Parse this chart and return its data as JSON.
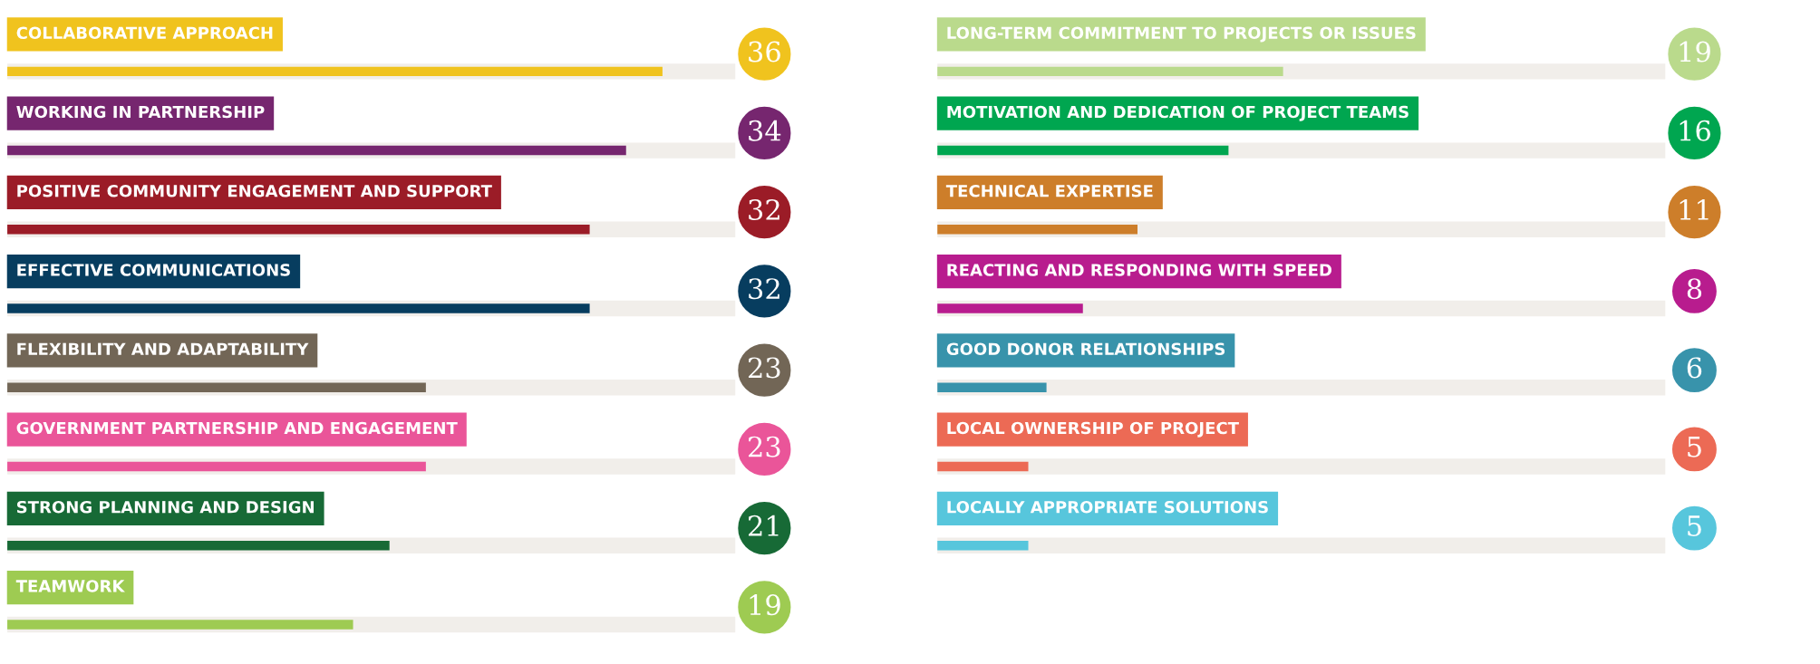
{
  "chart_data": [
    {
      "type": "bar",
      "orientation": "horizontal",
      "data_labels": true,
      "categories": [
        "COLLABORATIVE APPROACH",
        "WORKING IN PARTNERSHIP",
        "POSITIVE COMMUNITY ENGAGEMENT AND SUPPORT",
        "EFFECTIVE COMMUNICATIONS",
        "FLEXIBILITY AND ADAPTABILITY",
        "GOVERNMENT PARTNERSHIP AND ENGAGEMENT",
        "STRONG PLANNING AND DESIGN",
        "TEAMWORK"
      ],
      "values": [
        36,
        34,
        32,
        32,
        23,
        23,
        21,
        19
      ],
      "colors": [
        "#f0c31e",
        "#76266f",
        "#9b1c27",
        "#073d5f",
        "#726656",
        "#ea5599",
        "#176a36",
        "#9ecb52"
      ]
    },
    {
      "type": "bar",
      "orientation": "horizontal",
      "data_labels": true,
      "categories": [
        "LONG-TERM COMMITMENT TO PROJECTS OR ISSUES",
        "MOTIVATION AND DEDICATION OF PROJECT TEAMS",
        "TECHNICAL EXPERTISE",
        "REACTING AND RESPONDING WITH SPEED",
        "GOOD DONOR RELATIONSHIPS",
        "LOCAL OWNERSHIP OF PROJECT",
        "LOCALLY APPROPRIATE SOLUTIONS"
      ],
      "values": [
        19,
        16,
        11,
        8,
        6,
        5,
        5
      ],
      "colors": [
        "#bada8c",
        "#00a650",
        "#cd7e2a",
        "#b81c8e",
        "#3893ab",
        "#ec6a55",
        "#57c6dc"
      ]
    }
  ]
}
